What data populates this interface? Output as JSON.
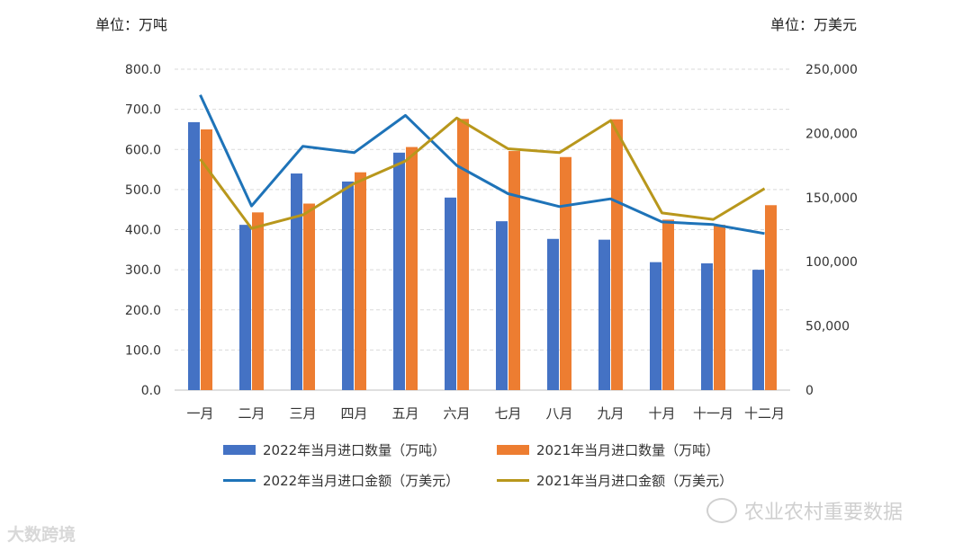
{
  "units": {
    "left": "单位：万吨",
    "right": "单位：万美元"
  },
  "chart_data": {
    "type": "bar",
    "categories": [
      "一月",
      "二月",
      "三月",
      "四月",
      "五月",
      "六月",
      "七月",
      "八月",
      "九月",
      "十月",
      "十一月",
      "十二月"
    ],
    "y_left": {
      "ylim": [
        0,
        800
      ],
      "ticks": [
        "0.0",
        "100.0",
        "200.0",
        "300.0",
        "400.0",
        "500.0",
        "600.0",
        "700.0",
        "800.0"
      ]
    },
    "y_right": {
      "ylim": [
        0,
        250000
      ],
      "ticks": [
        "0",
        "50,000",
        "100,000",
        "150,000",
        "200,000",
        "250,000"
      ]
    },
    "series": [
      {
        "name": "2022年当月进口数量（万吨）",
        "kind": "bar",
        "axis": "left",
        "color": "#4472C4",
        "values": [
          668,
          412,
          540,
          520,
          592,
          480,
          421,
          377,
          375,
          319,
          316,
          300
        ]
      },
      {
        "name": "2021年当月进口数量（万吨）",
        "kind": "bar",
        "axis": "left",
        "color": "#ED7D31",
        "values": [
          650,
          443,
          465,
          543,
          606,
          676,
          596,
          581,
          675,
          425,
          412,
          461
        ]
      },
      {
        "name": "2022年当月进口金额（万美元）",
        "kind": "line",
        "axis": "right",
        "color": "#1E73B8",
        "values": [
          230000,
          143500,
          190000,
          185000,
          214000,
          175000,
          153000,
          143000,
          149000,
          131000,
          129000,
          122000
        ]
      },
      {
        "name": "2021年当月进口金额（万美元）",
        "kind": "line",
        "axis": "right",
        "color": "#B8971C",
        "values": [
          180000,
          126000,
          136500,
          161000,
          178500,
          212000,
          188000,
          185000,
          210000,
          138000,
          133000,
          157000
        ]
      }
    ],
    "grid": true,
    "legend_position": "bottom"
  },
  "watermarks": {
    "right": "农业农村重要数据",
    "left": "大数跨境"
  }
}
